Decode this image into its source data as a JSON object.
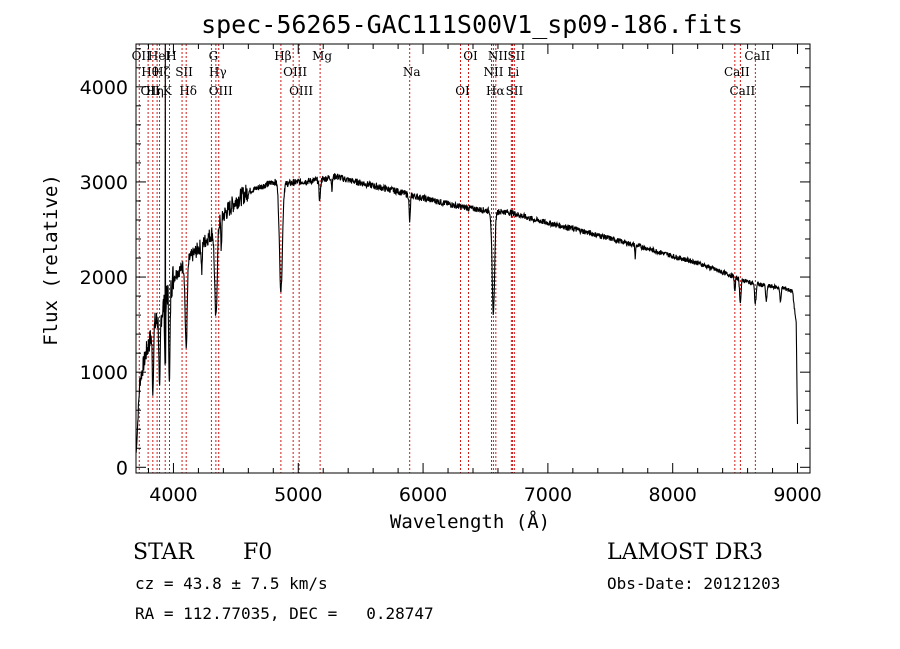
{
  "chart_data": {
    "type": "line",
    "title": "spec-56265-GAC111S00V1_sp09-186.fits",
    "xlabel": "Wavelength (Å)",
    "ylabel": "Flux (relative)",
    "xlim": [
      3700,
      9100
    ],
    "ylim": [
      -60,
      4450
    ],
    "xticks": [
      4000,
      5000,
      6000,
      7000,
      8000,
      9000
    ],
    "yticks": [
      0,
      1000,
      2000,
      3000,
      4000
    ],
    "continuum": [
      [
        3700,
        100
      ],
      [
        3730,
        900
      ],
      [
        3780,
        1200
      ],
      [
        3850,
        1500
      ],
      [
        3900,
        1600
      ],
      [
        3940,
        1800
      ],
      [
        4000,
        2000
      ],
      [
        4100,
        2150
      ],
      [
        4200,
        2300
      ],
      [
        4300,
        2450
      ],
      [
        4400,
        2650
      ],
      [
        4500,
        2800
      ],
      [
        4600,
        2900
      ],
      [
        4700,
        2950
      ],
      [
        4800,
        3000
      ],
      [
        4900,
        2980
      ],
      [
        5000,
        3000
      ],
      [
        5100,
        3010
      ],
      [
        5200,
        3030
      ],
      [
        5300,
        3060
      ],
      [
        5400,
        3020
      ],
      [
        5500,
        2990
      ],
      [
        5600,
        2960
      ],
      [
        5700,
        2930
      ],
      [
        5800,
        2900
      ],
      [
        5900,
        2860
      ],
      [
        6000,
        2830
      ],
      [
        6100,
        2800
      ],
      [
        6200,
        2770
      ],
      [
        6300,
        2740
      ],
      [
        6400,
        2720
      ],
      [
        6500,
        2700
      ],
      [
        6600,
        2690
      ],
      [
        6700,
        2680
      ],
      [
        6800,
        2640
      ],
      [
        6900,
        2600
      ],
      [
        7000,
        2570
      ],
      [
        7200,
        2510
      ],
      [
        7400,
        2440
      ],
      [
        7600,
        2370
      ],
      [
        7800,
        2300
      ],
      [
        8000,
        2220
      ],
      [
        8200,
        2150
      ],
      [
        8400,
        2050
      ],
      [
        8500,
        2000
      ],
      [
        8600,
        1950
      ],
      [
        8700,
        1920
      ],
      [
        8800,
        1900
      ],
      [
        8900,
        1880
      ],
      [
        8960,
        1850
      ],
      [
        8990,
        1500
      ],
      [
        9000,
        400
      ]
    ],
    "absorption_lines": [
      [
        3835,
        0.45,
        5
      ],
      [
        3889,
        0.5,
        5
      ],
      [
        3934,
        0.45,
        4
      ],
      [
        3968,
        0.55,
        5
      ],
      [
        4102,
        0.42,
        8
      ],
      [
        4227,
        0.12,
        4
      ],
      [
        4340,
        0.38,
        10
      ],
      [
        4383,
        0.12,
        4
      ],
      [
        4861,
        0.38,
        12
      ],
      [
        5172,
        0.07,
        6
      ],
      [
        5270,
        0.04,
        4
      ],
      [
        5893,
        0.1,
        5
      ],
      [
        6563,
        0.4,
        10
      ],
      [
        7700,
        0.06,
        3
      ],
      [
        8498,
        0.08,
        4
      ],
      [
        8542,
        0.12,
        6
      ],
      [
        8662,
        0.11,
        6
      ],
      [
        8750,
        0.09,
        5
      ],
      [
        8863,
        0.08,
        5
      ]
    ],
    "spikes": [
      [
        3934,
        4450
      ]
    ],
    "emission_lines": [
      {
        "wave": 3726,
        "labels": [
          "OII"
        ]
      },
      {
        "wave": 3797,
        "labels": [
          "Hθ",
          "OII"
        ]
      },
      {
        "wave": 3835,
        "labels": [
          "Hη"
        ]
      },
      {
        "wave": 3869,
        "labels": [
          "HeI"
        ]
      },
      {
        "wave": 3889,
        "labels": [
          "Hζ"
        ]
      },
      {
        "wave": 3934,
        "labels": [
          "K"
        ]
      },
      {
        "wave": 3968,
        "labels": [
          "H"
        ]
      },
      {
        "wave": 4069,
        "labels": [
          "SII"
        ]
      },
      {
        "wave": 4102,
        "labels": [
          "Hδ"
        ]
      },
      {
        "wave": 4304,
        "labels": [
          "G"
        ]
      },
      {
        "wave": 4340,
        "labels": [
          "Hγ"
        ]
      },
      {
        "wave": 4363,
        "labels": [
          "OIII"
        ]
      },
      {
        "wave": 4861,
        "labels": [
          "Hβ"
        ]
      },
      {
        "wave": 4959,
        "labels": [
          "OIII"
        ]
      },
      {
        "wave": 5007,
        "labels": [
          "OIII"
        ]
      },
      {
        "wave": 5175,
        "labels": [
          "Mg"
        ]
      },
      {
        "wave": 5893,
        "labels": [
          "Na"
        ]
      },
      {
        "wave": 6300,
        "labels": [
          "OI"
        ]
      },
      {
        "wave": 6364,
        "labels": [
          "OI"
        ]
      },
      {
        "wave": 6548,
        "labels": [
          "NII"
        ]
      },
      {
        "wave": 6563,
        "labels": [
          "Hα"
        ]
      },
      {
        "wave": 6583,
        "labels": [
          "NII"
        ]
      },
      {
        "wave": 6707,
        "labels": [
          "Li"
        ]
      },
      {
        "wave": 6716,
        "labels": [
          "SII"
        ]
      },
      {
        "wave": 6731,
        "labels": [
          "SII"
        ]
      },
      {
        "wave": 8498,
        "labels": [
          "CaII"
        ]
      },
      {
        "wave": 8542,
        "labels": [
          "CaII"
        ]
      },
      {
        "wave": 8662,
        "labels": [
          "CaII"
        ]
      }
    ],
    "line_color": "#cc0000",
    "spectrum_color": "#000000"
  },
  "info": {
    "object_class": "STAR",
    "subclass": "F0",
    "survey": "LAMOST DR3",
    "redshift": "cz = 43.8 ± 7.5 km/s",
    "obs_date": "Obs-Date: 20121203",
    "coords": "RA = 112.77035, DEC =   0.28747"
  }
}
